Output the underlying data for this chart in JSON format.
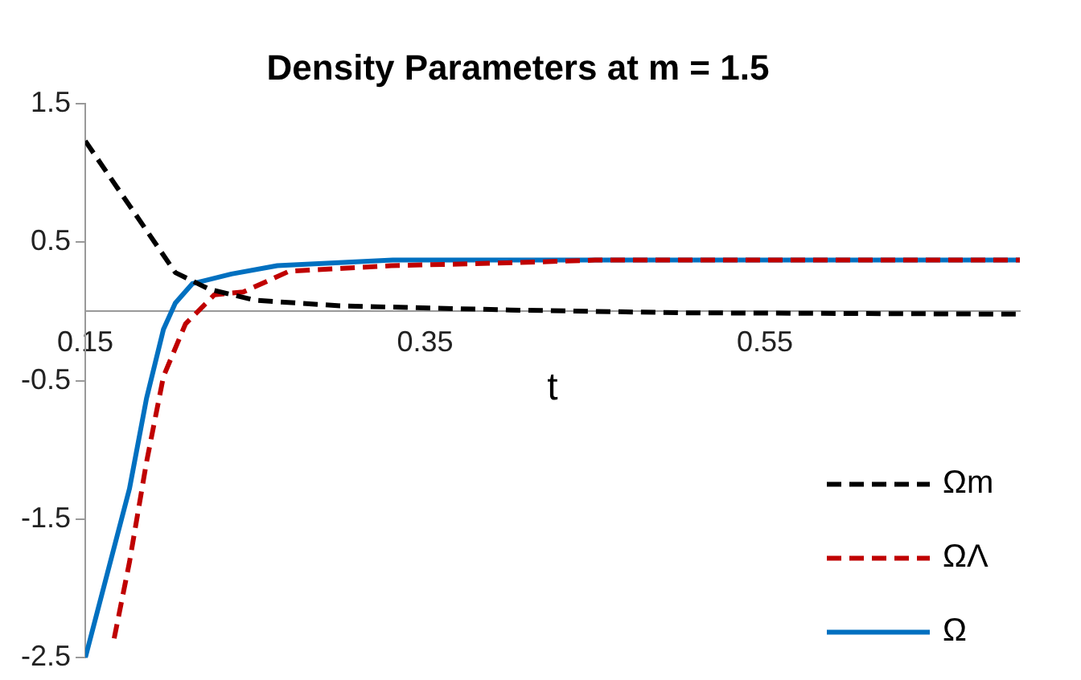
{
  "chart_data": {
    "type": "line",
    "title": "Density Parameters at m = 1.5",
    "xlabel": "t",
    "xlim": [
      0.15,
      0.7
    ],
    "xticks": [
      0.15,
      0.35,
      0.55
    ],
    "ylim": [
      -2.5,
      1.5
    ],
    "yticks": [
      -2.5,
      -1.5,
      -0.5,
      0.5,
      1.5
    ],
    "grid": false,
    "legend": "bottom right",
    "marker": "none",
    "series": [
      {
        "name": "Ωm",
        "color": "#000000",
        "line_style": "dashed",
        "x": [
          0.15,
          0.203,
          0.223,
          0.25,
          0.3,
          0.4,
          0.5,
          0.7
        ],
        "values": [
          1.23,
          0.28,
          0.16,
          0.08,
          0.04,
          0.01,
          -0.01,
          -0.02
        ]
      },
      {
        "name": "ΩΛ",
        "color": "#c00000",
        "line_style": "dashed",
        "x": [
          0.167,
          0.176,
          0.186,
          0.196,
          0.209,
          0.226,
          0.243,
          0.27,
          0.33,
          0.398,
          0.45,
          0.7
        ],
        "values": [
          -2.36,
          -1.81,
          -1.09,
          -0.47,
          -0.09,
          0.12,
          0.14,
          0.29,
          0.33,
          0.35,
          0.37,
          0.37
        ]
      },
      {
        "name": "Ω",
        "color": "#0070c0",
        "line_style": "solid",
        "x": [
          0.15,
          0.176,
          0.186,
          0.196,
          0.203,
          0.213,
          0.236,
          0.263,
          0.331,
          0.7
        ],
        "values": [
          -2.5,
          -1.28,
          -0.63,
          -0.13,
          0.06,
          0.2,
          0.27,
          0.33,
          0.37,
          0.37
        ]
      }
    ]
  }
}
